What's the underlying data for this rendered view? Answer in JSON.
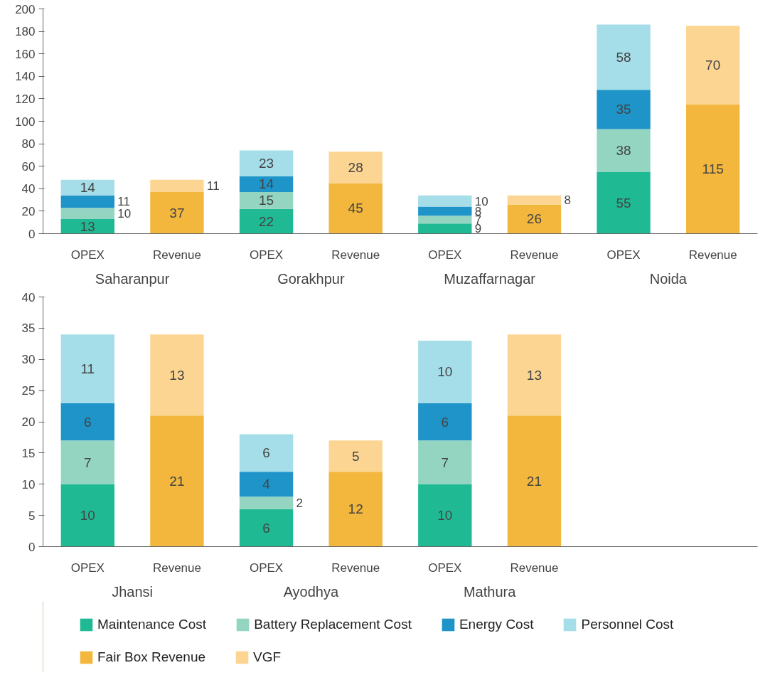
{
  "chart_data": [
    {
      "type": "bar",
      "stacked": true,
      "categories": [
        "OPEX",
        "Revenue",
        "OPEX",
        "Revenue",
        "OPEX",
        "Revenue",
        "OPEX",
        "Revenue"
      ],
      "annotations": [
        "Saharanpur",
        "Gorakhpur",
        "Muzaffarnagar",
        "Noida"
      ],
      "ylim": [
        0,
        200
      ],
      "yticks": [
        0,
        20,
        40,
        60,
        80,
        100,
        120,
        140,
        160,
        180,
        200
      ],
      "data_labels": true,
      "series": [
        {
          "color": "#1fba94",
          "values": [
            13,
            null,
            22,
            null,
            9,
            null,
            55,
            null
          ]
        },
        {
          "color": "#93d5c1",
          "values": [
            10,
            null,
            15,
            null,
            7,
            null,
            38,
            null
          ]
        },
        {
          "color": "#1e94c8",
          "values": [
            11,
            null,
            14,
            null,
            8,
            null,
            35,
            null
          ]
        },
        {
          "color": "#a5dde9",
          "values": [
            14,
            null,
            23,
            null,
            10,
            null,
            58,
            null
          ]
        },
        {
          "color": "#f2b73c",
          "values": [
            null,
            37,
            null,
            45,
            null,
            26,
            null,
            115
          ]
        },
        {
          "color": "#fcd592",
          "values": [
            null,
            11,
            null,
            28,
            null,
            8,
            null,
            70
          ]
        }
      ]
    },
    {
      "type": "bar",
      "stacked": true,
      "categories": [
        "OPEX",
        "Revenue",
        "OPEX",
        "Revenue",
        "OPEX",
        "Revenue"
      ],
      "annotations": [
        "Jhansi",
        "Ayodhya",
        "Mathura"
      ],
      "ylim": [
        0,
        40
      ],
      "yticks": [
        0,
        5,
        10,
        15,
        20,
        25,
        30,
        35,
        40
      ],
      "data_labels": true,
      "legend": "bottom",
      "series": [
        {
          "name": "Maintenance Cost",
          "color": "#1fba94",
          "values": [
            10,
            null,
            6,
            null,
            10,
            null
          ]
        },
        {
          "name": "Battery Replacement Cost",
          "color": "#93d5c1",
          "values": [
            7,
            null,
            2,
            null,
            7,
            null
          ]
        },
        {
          "name": "Energy Cost",
          "color": "#1e94c8",
          "values": [
            6,
            null,
            4,
            null,
            6,
            null
          ]
        },
        {
          "name": "Personnel Cost",
          "color": "#a5dde9",
          "values": [
            11,
            null,
            6,
            null,
            10,
            null
          ]
        },
        {
          "name": "Fair Box Revenue",
          "color": "#f2b73c",
          "values": [
            null,
            21,
            null,
            12,
            null,
            21
          ]
        },
        {
          "name": "VGF",
          "color": "#fcd592",
          "values": [
            null,
            13,
            null,
            5,
            null,
            13
          ]
        }
      ]
    }
  ]
}
